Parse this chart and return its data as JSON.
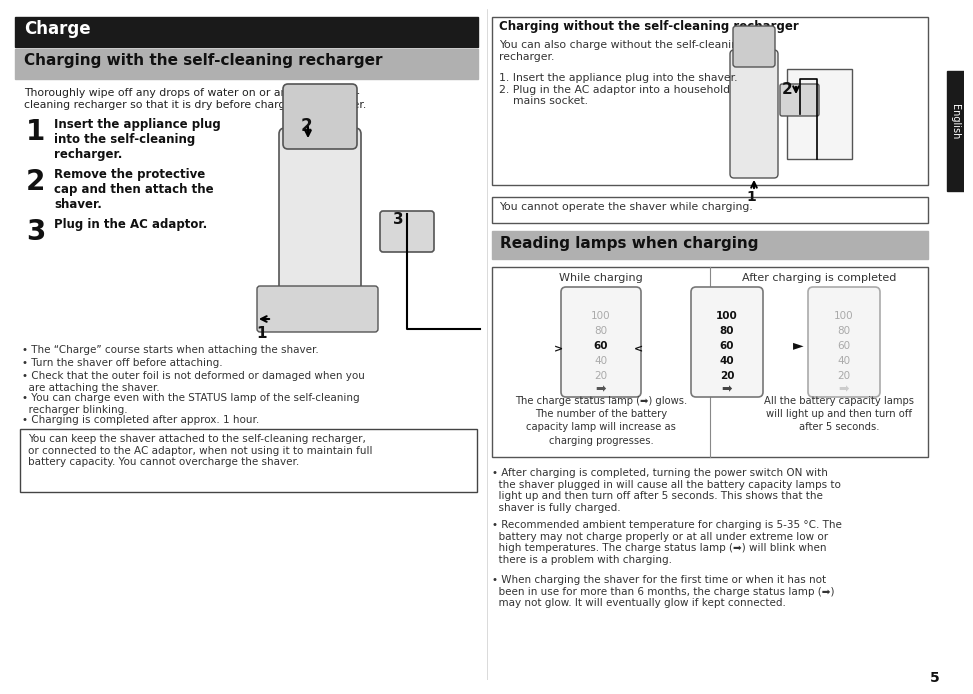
{
  "bg_color": "#ffffff",
  "page_width": 9.54,
  "page_height": 6.71,
  "left_header_bg": "#1a1a1a",
  "left_header_text": "Charge",
  "left_subheader_bg": "#b0b0b0",
  "left_subheader_text": "Charging with the self-cleaning recharger",
  "right_subheader_bg": "#b0b0b0",
  "right_subheader_text": "Reading lamps when charging",
  "intro_text": "Thoroughly wipe off any drops of water on or around the self-\ncleaning recharger so that it is dry before charging the shaver.",
  "step1_num": "1",
  "step1_text": "Insert the appliance plug\ninto the self-cleaning\nrecharger.",
  "step2_num": "2",
  "step2_text": "Remove the protective\ncap and then attach the\nshaver.",
  "step3_num": "3",
  "step3_text": "Plug in the AC adaptor.",
  "bullet1": "• The “Charge” course starts when attaching the shaver.",
  "bullet2": "• Turn the shaver off before attaching.",
  "bullet3": "• Check that the outer foil is not deformed or damaged when you\n  are attaching the shaver.",
  "bullet4": "• You can charge even with the STATUS lamp of the self-cleaning\n  recharger blinking.",
  "bullet5": "• Charging is completed after approx. 1 hour.",
  "boxed_text": "You can keep the shaver attached to the self-cleaning recharger,\nor connected to the AC adaptor, when not using it to maintain full\nbattery capacity. You cannot overcharge the shaver.",
  "right_header_text": "Charging without the self-cleaning recharger",
  "right_para1": "You can also charge without the self-cleaning\nrecharger.",
  "right_steps": "1. Insert the appliance plug into the shaver.\n2. Plug in the AC adaptor into a household\n    mains socket.",
  "cannot_operate": "You cannot operate the shaver while charging.",
  "while_charging": "While charging",
  "after_charging": "After charging is completed",
  "lamp_caption_left": "The charge status lamp (➡) glows.\nThe number of the battery\ncapacity lamp will increase as\ncharging progresses.",
  "lamp_caption_right": "All the battery capacity lamps\nwill light up and then turn off\nafter 5 seconds.",
  "rb1": "• After charging is completed, turning the power switch ON with\n  the shaver plugged in will cause all the battery capacity lamps to\n  light up and then turn off after 5 seconds. This shows that the\n  shaver is fully charged.",
  "rb2": "• Recommended ambient temperature for charging is 5-35 °C. The\n  battery may not charge properly or at all under extreme low or\n  high temperatures. The charge status lamp (➡) will blink when\n  there is a problem with charging.",
  "rb3": "• When charging the shaver for the first time or when it has not\n  been in use for more than 6 months, the charge status lamp (➡)\n  may not glow. It will eventually glow if kept connected.",
  "page_num": "5",
  "english_label": "English",
  "black_tab_color": "#1a1a1a",
  "lamp_values": [
    "100",
    "80",
    "60",
    "40",
    "20"
  ],
  "lamp_gray": "#aaaaaa",
  "lamp_dark": "#111111"
}
